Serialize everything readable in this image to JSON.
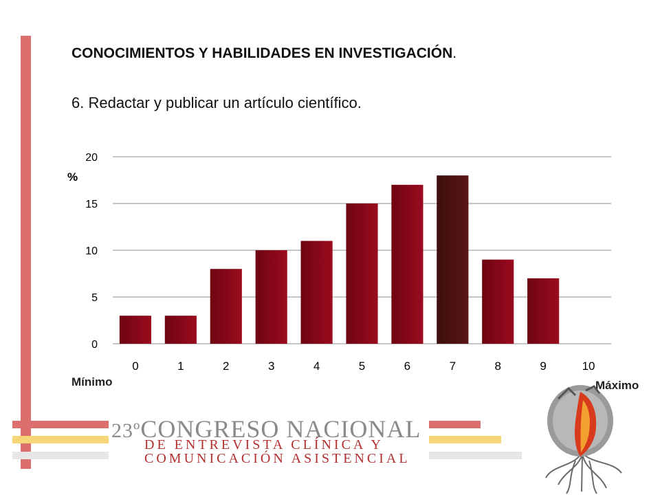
{
  "slide": {
    "heading": "CONOCIMIENTOS Y HABILIDADES EN INVESTIGACIÓN",
    "heading_dot": ".",
    "subheading": "6. Redactar y publicar un artículo científico.",
    "label_min": "Mínimo",
    "label_max": "Máximo"
  },
  "logo": {
    "number": "23º",
    "line1": "CONGRESO NACIONAL",
    "line2": "DE ENTREVISTA CLÍNICA Y",
    "line3": "COMUNICACIÓN ASISTENCIAL"
  },
  "colors": {
    "bar": "#9b0b1e",
    "bar_highlight": "#5a1616",
    "accent_red": "#dc6e6e",
    "accent_yellow": "#f7d67a",
    "accent_gray": "#e6e6e6"
  },
  "chart_data": {
    "type": "bar",
    "categories": [
      "0",
      "1",
      "2",
      "3",
      "4",
      "5",
      "6",
      "7",
      "8",
      "9",
      "10"
    ],
    "values": [
      3,
      3,
      8,
      10,
      11,
      15,
      17,
      18,
      9,
      7,
      0
    ],
    "highlight_category": "7",
    "ylabel": "%",
    "ylim": [
      0,
      20
    ],
    "yticks": [
      0,
      5,
      10,
      15,
      20
    ],
    "grid": true
  }
}
